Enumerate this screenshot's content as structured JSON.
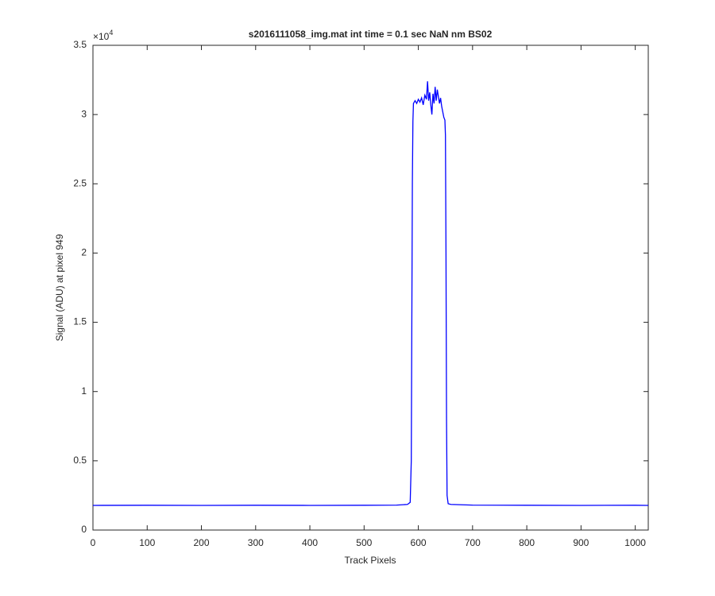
{
  "chart_data": {
    "type": "line",
    "title": "s2016111058_img.mat int time = 0.1 sec  NaN nm BS02",
    "x_label": "Track Pixels",
    "y_label": "Signal (ADU) at pixel 949",
    "y_multiplier": {
      "base": "×10",
      "exponent": "4"
    },
    "x": [
      0,
      100,
      200,
      300,
      400,
      500,
      560,
      580,
      585,
      587,
      588,
      589,
      590,
      591,
      594,
      597,
      600,
      603,
      606,
      609,
      612,
      615,
      617,
      619,
      621,
      623,
      625,
      627,
      629,
      631,
      633,
      635,
      637,
      639,
      641,
      643,
      645,
      647,
      649,
      650,
      651,
      652,
      653,
      655,
      660,
      700,
      800,
      900,
      1000,
      1024
    ],
    "series": [
      {
        "name": "Signal",
        "color": "#0000ff",
        "values": [
          1780,
          1790,
          1780,
          1790,
          1780,
          1790,
          1800,
          1850,
          2000,
          5000,
          15000,
          25000,
          29500,
          30800,
          31000,
          30800,
          31100,
          30900,
          31200,
          30700,
          31400,
          31100,
          32400,
          31000,
          31600,
          30700,
          30000,
          31500,
          30800,
          32000,
          31000,
          31800,
          31300,
          30800,
          31200,
          30600,
          30200,
          29800,
          29600,
          28500,
          20000,
          8000,
          2500,
          1900,
          1850,
          1800,
          1790,
          1780,
          1790,
          1780
        ]
      }
    ],
    "xlim": [
      0,
      1024
    ],
    "xticks": [
      0,
      100,
      200,
      300,
      400,
      500,
      600,
      700,
      800,
      900,
      1000
    ],
    "ylim": [
      0,
      35000
    ],
    "yticks": [
      {
        "value": 0,
        "label": "0"
      },
      {
        "value": 5000,
        "label": "0.5"
      },
      {
        "value": 10000,
        "label": "1"
      },
      {
        "value": 15000,
        "label": "1.5"
      },
      {
        "value": 20000,
        "label": "2"
      },
      {
        "value": 25000,
        "label": "2.5"
      },
      {
        "value": 30000,
        "label": "3"
      },
      {
        "value": 35000,
        "label": "3.5"
      }
    ],
    "grid": false
  }
}
